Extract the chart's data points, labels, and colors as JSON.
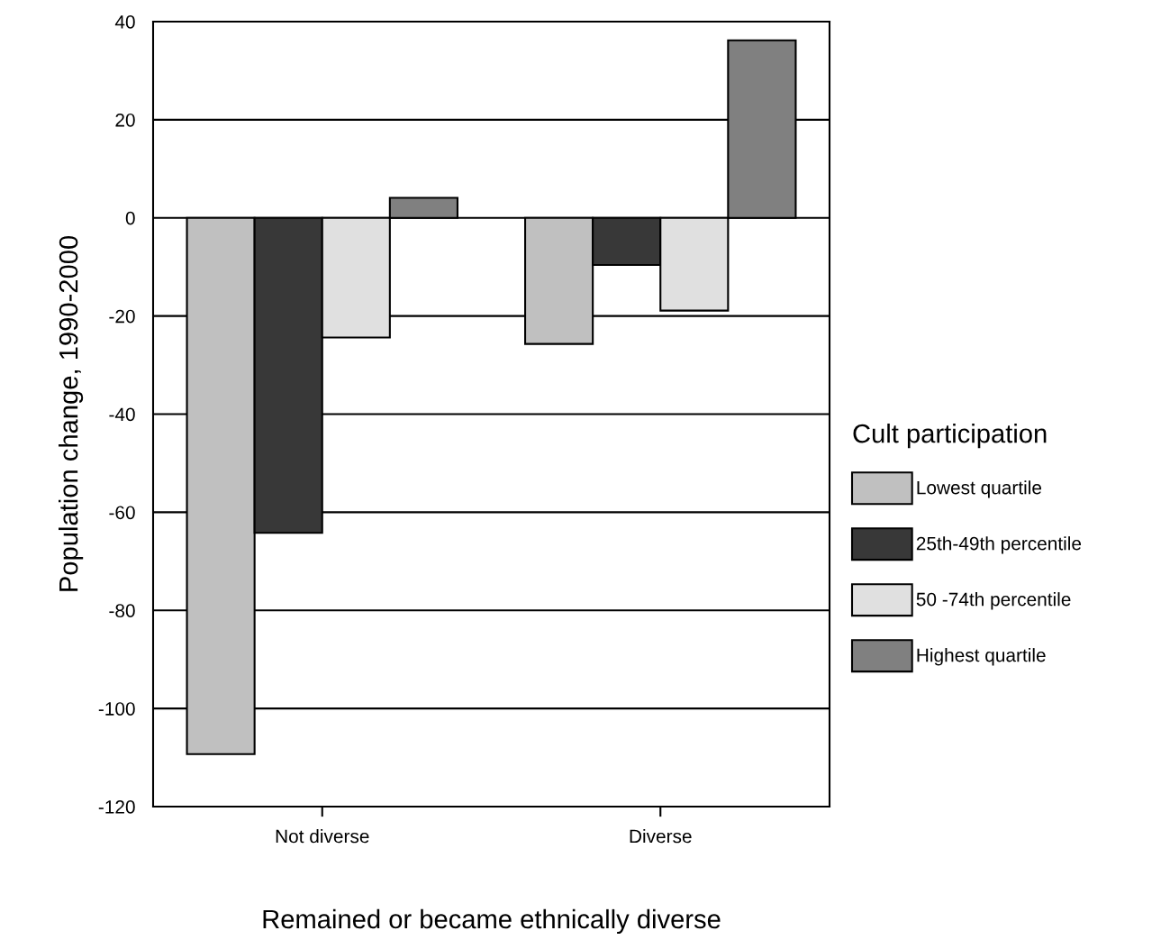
{
  "chart_data": {
    "type": "bar",
    "xlabel": "Remained or became ethnically diverse",
    "ylabel": "Population change, 1990-2000",
    "legend_title": "Cult participation",
    "categories": [
      "Not diverse",
      "Diverse"
    ],
    "series": [
      {
        "name": "Lowest quartile",
        "color": "#c0c0c0",
        "values": [
          -109.3,
          -25.7
        ]
      },
      {
        "name": "25th-49th percentile",
        "color": "#383838",
        "values": [
          -64.2,
          -9.6
        ]
      },
      {
        "name": "50 -74th percentile",
        "color": "#e0e0e0",
        "values": [
          -24.4,
          -18.9
        ]
      },
      {
        "name": "Highest quartile",
        "color": "#808080",
        "values": [
          4.1,
          36.2
        ]
      }
    ],
    "ylim": [
      -120,
      40
    ],
    "yticks": [
      -120,
      -100,
      -80,
      -60,
      -40,
      -20,
      0,
      20,
      40
    ],
    "grid": "y",
    "legend": "right"
  }
}
